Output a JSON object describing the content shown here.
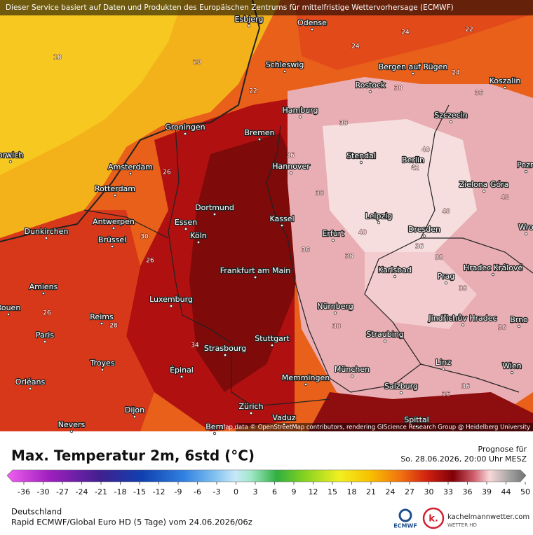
{
  "header": {
    "notice": "Dieser Service basiert auf Daten und Produkten des Europäischen Zentrums für mittelfristige Wettervorhersage (ECMWF)"
  },
  "map": {
    "attribution": "Map data © OpenStreetMap contributors, rendering GIScience Research Group @ Heidelberg University",
    "cities": [
      "Esbjerg",
      "Odense",
      "Schleswig",
      "Bergen auf Rügen",
      "Rostock",
      "Koszalin",
      "Hamburg",
      "Szczecin",
      "Groningen",
      "Bremen",
      "orwich",
      "Stendal",
      "Berlin",
      "Amsterdam",
      "Hannover",
      "Pozn",
      "Rotterdam",
      "Zielona Góra",
      "Dortmund",
      "Leipzig",
      "Antwerpen",
      "Essen",
      "Kassel",
      "Erfurt",
      "Dresden",
      "Wro",
      "Dunkirchen",
      "Köln",
      "Brüssel",
      "Frankfurt am Main",
      "Karlsbad",
      "Hradec Králové",
      "Prag",
      "Amiens",
      "Luxemburg",
      "Rouen",
      "Nürnberg",
      "Jindřichův Hradec",
      "Brno",
      "Reims",
      "Paris",
      "Straubing",
      "Stuttgart",
      "Strasbourg",
      "Troyes",
      "Épinal",
      "München",
      "Linz",
      "Wien",
      "Memmingen",
      "Orléans",
      "Salzburg",
      "Dijon",
      "Zürich",
      "Vaduz",
      "Nevers",
      "Bern",
      "Spittal"
    ],
    "temperatures": [
      18,
      20,
      22,
      24,
      22,
      24,
      36,
      38,
      38,
      36,
      40,
      42,
      38,
      40,
      40,
      40,
      36,
      38,
      36,
      38,
      38,
      36,
      38,
      34,
      26,
      28,
      36,
      36,
      26,
      24,
      30,
      26
    ]
  },
  "legend": {
    "title": "Max. Temperatur 2m, 6std (°C)",
    "ticks": [
      -36,
      -30,
      -27,
      -24,
      -21,
      -18,
      -15,
      -12,
      -9,
      -6,
      -3,
      0,
      3,
      6,
      9,
      12,
      15,
      18,
      21,
      24,
      27,
      30,
      33,
      36,
      39,
      44,
      50
    ]
  },
  "forecast": {
    "label": "Prognose für",
    "time": "So. 28.06.2026, 20:00 Uhr MESZ"
  },
  "footer": {
    "region": "Deutschland",
    "model": "Rapid ECMWF/Global Euro HD (5 Tage) vom 24.06.2026/06z",
    "ecmwf": "ECMWF",
    "site": "kachelmannwetter.com",
    "tagline": "WETTER HD"
  }
}
